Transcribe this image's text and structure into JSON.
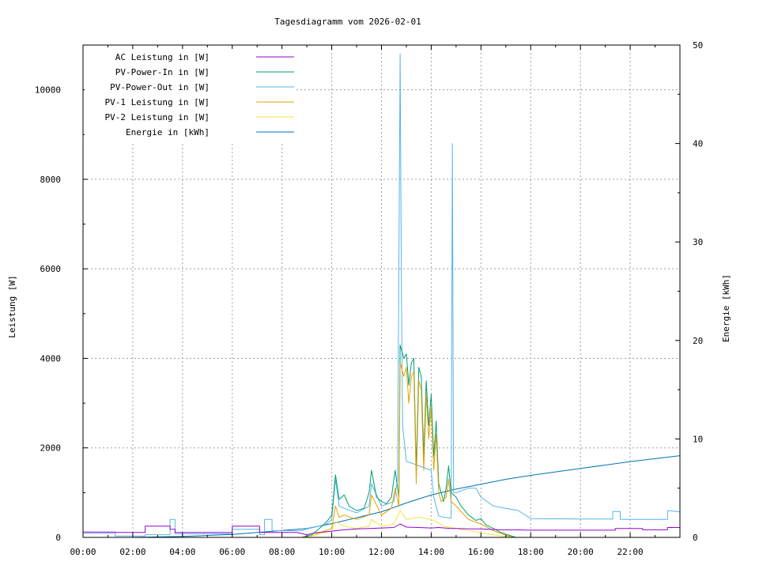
{
  "chart_data": {
    "type": "line",
    "title": "Tagesdiagramm vom 2026-02-01",
    "ylabel": "Leistung [W]",
    "y2label": "Energie [kWh]",
    "xlabel": "",
    "xlim": [
      0,
      24
    ],
    "ylim": [
      0,
      11000
    ],
    "y2lim": [
      0,
      50
    ],
    "x_ticks": [
      "00:00",
      "02:00",
      "04:00",
      "06:00",
      "08:00",
      "10:00",
      "12:00",
      "14:00",
      "16:00",
      "18:00",
      "20:00",
      "22:00"
    ],
    "y_ticks": [
      0,
      2000,
      4000,
      6000,
      8000,
      10000
    ],
    "y2_ticks": [
      0,
      10,
      20,
      30,
      40,
      50
    ],
    "grid": true,
    "legend_position": "top-left",
    "series": [
      {
        "name": "AC Leistung in [W]",
        "color": "#9400d3",
        "axis": "left",
        "points": [
          [
            0,
            120
          ],
          [
            1.3,
            120
          ],
          [
            1.3,
            110
          ],
          [
            2.5,
            110
          ],
          [
            2.5,
            250
          ],
          [
            3.5,
            250
          ],
          [
            3.5,
            180
          ],
          [
            3.7,
            180
          ],
          [
            3.7,
            110
          ],
          [
            6,
            110
          ],
          [
            6,
            250
          ],
          [
            7.1,
            250
          ],
          [
            7.1,
            110
          ],
          [
            8.6,
            110
          ],
          [
            9,
            60
          ],
          [
            9.3,
            100
          ],
          [
            10,
            140
          ],
          [
            10.5,
            170
          ],
          [
            11,
            190
          ],
          [
            11.5,
            200
          ],
          [
            12,
            210
          ],
          [
            12.5,
            220
          ],
          [
            12.75,
            300
          ],
          [
            13,
            230
          ],
          [
            13.5,
            220
          ],
          [
            14,
            210
          ],
          [
            14.3,
            220
          ],
          [
            14.8,
            200
          ],
          [
            15,
            200
          ],
          [
            15.6,
            190
          ],
          [
            16,
            190
          ],
          [
            16.3,
            180
          ],
          [
            16.8,
            170
          ],
          [
            17.3,
            170
          ],
          [
            18,
            160
          ],
          [
            19,
            160
          ],
          [
            20,
            160
          ],
          [
            21.4,
            160
          ],
          [
            21.4,
            200
          ],
          [
            22.5,
            200
          ],
          [
            22.5,
            170
          ],
          [
            23.5,
            170
          ],
          [
            23.5,
            220
          ],
          [
            24,
            220
          ]
        ]
      },
      {
        "name": "PV-Power-In in [W]",
        "color": "#009e73",
        "axis": "left",
        "points": [
          [
            8.8,
            0
          ],
          [
            9.2,
            60
          ],
          [
            9.5,
            200
          ],
          [
            9.8,
            350
          ],
          [
            10,
            500
          ],
          [
            10.15,
            1400
          ],
          [
            10.3,
            850
          ],
          [
            10.5,
            950
          ],
          [
            10.7,
            700
          ],
          [
            11,
            600
          ],
          [
            11.3,
            650
          ],
          [
            11.5,
            1000
          ],
          [
            11.6,
            1500
          ],
          [
            11.8,
            900
          ],
          [
            12,
            800
          ],
          [
            12.2,
            750
          ],
          [
            12.4,
            900
          ],
          [
            12.55,
            1500
          ],
          [
            12.7,
            900
          ],
          [
            12.75,
            4300
          ],
          [
            12.9,
            4000
          ],
          [
            13,
            4100
          ],
          [
            13.1,
            3400
          ],
          [
            13.2,
            3900
          ],
          [
            13.3,
            4000
          ],
          [
            13.4,
            1500
          ],
          [
            13.5,
            3800
          ],
          [
            13.6,
            3600
          ],
          [
            13.7,
            1800
          ],
          [
            13.8,
            3500
          ],
          [
            13.9,
            2500
          ],
          [
            14,
            3200
          ],
          [
            14.1,
            1800
          ],
          [
            14.2,
            2600
          ],
          [
            14.3,
            1200
          ],
          [
            14.4,
            1000
          ],
          [
            14.5,
            800
          ],
          [
            14.6,
            1100
          ],
          [
            14.7,
            1600
          ],
          [
            14.8,
            1000
          ],
          [
            15,
            900
          ],
          [
            15.2,
            700
          ],
          [
            15.5,
            500
          ],
          [
            15.8,
            380
          ],
          [
            16,
            420
          ],
          [
            16.2,
            280
          ],
          [
            16.5,
            200
          ],
          [
            16.8,
            110
          ],
          [
            17,
            70
          ],
          [
            17.3,
            20
          ],
          [
            17.4,
            0
          ]
        ]
      },
      {
        "name": "PV-Power-Out in [W]",
        "color": "#56b4e9",
        "axis": "left",
        "points": [
          [
            0,
            90
          ],
          [
            1.3,
            90
          ],
          [
            1.3,
            30
          ],
          [
            2.5,
            30
          ],
          [
            2.5,
            60
          ],
          [
            3.5,
            60
          ],
          [
            3.5,
            400
          ],
          [
            3.7,
            400
          ],
          [
            3.7,
            80
          ],
          [
            6,
            80
          ],
          [
            6,
            180
          ],
          [
            7.1,
            180
          ],
          [
            7.1,
            60
          ],
          [
            7.3,
            60
          ],
          [
            7.3,
            400
          ],
          [
            7.6,
            400
          ],
          [
            7.6,
            150
          ],
          [
            8.6,
            150
          ],
          [
            8.8,
            150
          ],
          [
            9,
            190
          ],
          [
            9.5,
            250
          ],
          [
            9.8,
            300
          ],
          [
            10,
            400
          ],
          [
            10.15,
            1300
          ],
          [
            10.3,
            700
          ],
          [
            10.5,
            650
          ],
          [
            11,
            550
          ],
          [
            11.5,
            700
          ],
          [
            11.6,
            1200
          ],
          [
            12,
            700
          ],
          [
            12.5,
            800
          ],
          [
            12.65,
            1300
          ],
          [
            12.75,
            10800
          ],
          [
            12.8,
            5600
          ],
          [
            12.85,
            2500
          ],
          [
            13,
            1700
          ],
          [
            13.5,
            1600
          ],
          [
            14,
            1500
          ],
          [
            14.1,
            900
          ],
          [
            14.3,
            480
          ],
          [
            14.5,
            450
          ],
          [
            14.8,
            430
          ],
          [
            14.85,
            8800
          ],
          [
            14.9,
            1000
          ],
          [
            15,
            1000
          ],
          [
            15.5,
            1100
          ],
          [
            15.8,
            1100
          ],
          [
            16,
            900
          ],
          [
            16.5,
            700
          ],
          [
            17,
            650
          ],
          [
            17.5,
            600
          ],
          [
            18,
            420
          ],
          [
            20,
            410
          ],
          [
            21.3,
            410
          ],
          [
            21.3,
            580
          ],
          [
            21.6,
            580
          ],
          [
            21.6,
            400
          ],
          [
            23.5,
            400
          ],
          [
            23.5,
            600
          ],
          [
            24,
            570
          ]
        ]
      },
      {
        "name": "PV-1 Leistung in [W]",
        "color": "#e69f00",
        "axis": "left",
        "points": [
          [
            9,
            0
          ],
          [
            9.5,
            100
          ],
          [
            10,
            200
          ],
          [
            10.15,
            700
          ],
          [
            10.3,
            450
          ],
          [
            10.5,
            500
          ],
          [
            11,
            400
          ],
          [
            11.5,
            500
          ],
          [
            11.6,
            950
          ],
          [
            12,
            500
          ],
          [
            12.4,
            650
          ],
          [
            12.55,
            1100
          ],
          [
            12.7,
            700
          ],
          [
            12.75,
            3900
          ],
          [
            12.9,
            3600
          ],
          [
            13,
            3800
          ],
          [
            13.1,
            3000
          ],
          [
            13.2,
            3600
          ],
          [
            13.3,
            3700
          ],
          [
            13.4,
            1200
          ],
          [
            13.5,
            3500
          ],
          [
            13.6,
            3300
          ],
          [
            13.7,
            1500
          ],
          [
            13.8,
            3200
          ],
          [
            13.9,
            2200
          ],
          [
            14,
            2900
          ],
          [
            14.1,
            1500
          ],
          [
            14.2,
            2300
          ],
          [
            14.3,
            1000
          ],
          [
            14.4,
            800
          ],
          [
            14.6,
            900
          ],
          [
            14.7,
            1300
          ],
          [
            14.8,
            800
          ],
          [
            15,
            700
          ],
          [
            15.5,
            400
          ],
          [
            16,
            300
          ],
          [
            16.5,
            150
          ],
          [
            17,
            50
          ],
          [
            17.3,
            0
          ]
        ]
      },
      {
        "name": "PV-2 Leistung in [W]",
        "color": "#f0e442",
        "axis": "left",
        "points": [
          [
            9,
            0
          ],
          [
            9.5,
            80
          ],
          [
            10,
            150
          ],
          [
            10.15,
            350
          ],
          [
            10.5,
            250
          ],
          [
            11,
            200
          ],
          [
            11.5,
            250
          ],
          [
            11.6,
            400
          ],
          [
            12,
            250
          ],
          [
            12.5,
            300
          ],
          [
            12.75,
            600
          ],
          [
            13,
            400
          ],
          [
            13.5,
            450
          ],
          [
            14,
            400
          ],
          [
            14.2,
            350
          ],
          [
            14.5,
            250
          ],
          [
            15,
            200
          ],
          [
            15.5,
            150
          ],
          [
            16,
            100
          ],
          [
            16.5,
            60
          ],
          [
            17,
            20
          ],
          [
            17.3,
            0
          ]
        ]
      },
      {
        "name": "Energie in [kWh]",
        "color": "#0072b2",
        "axis": "right",
        "points": [
          [
            0,
            0
          ],
          [
            2,
            0
          ],
          [
            4,
            0.1
          ],
          [
            6,
            0.3
          ],
          [
            8,
            0.7
          ],
          [
            9,
            0.9
          ],
          [
            10,
            1.4
          ],
          [
            11,
            2.0
          ],
          [
            12,
            2.6
          ],
          [
            13,
            3.5
          ],
          [
            14,
            4.3
          ],
          [
            15,
            4.9
          ],
          [
            16,
            5.4
          ],
          [
            17,
            5.9
          ],
          [
            18,
            6.3
          ],
          [
            20,
            7.0
          ],
          [
            22,
            7.7
          ],
          [
            24,
            8.3
          ]
        ]
      }
    ]
  }
}
